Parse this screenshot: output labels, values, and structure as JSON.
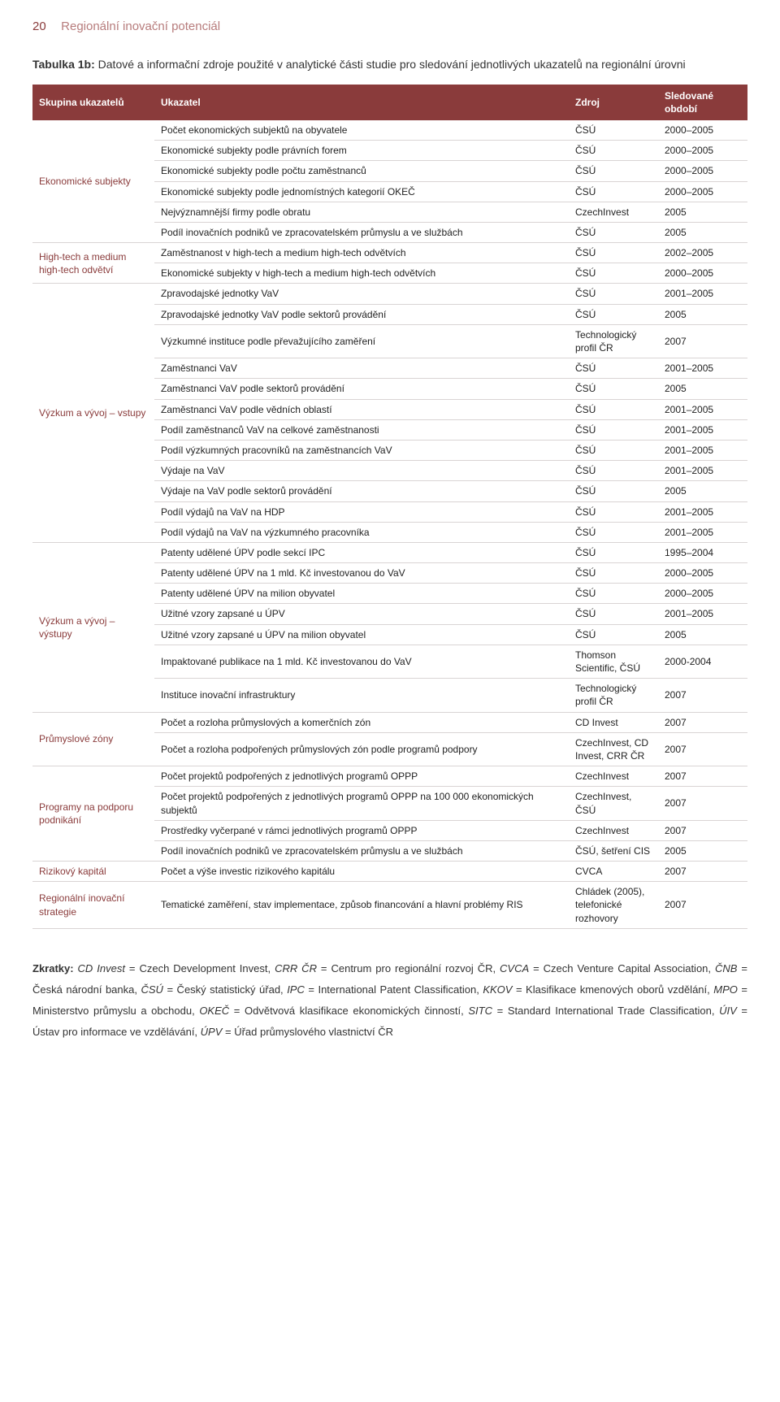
{
  "page_number": "20",
  "running_title": "Regionální inovační potenciál",
  "table_title_bold": "Tabulka 1b:",
  "table_title_rest": " Datové a informační zdroje použité v analytické části studie pro sledování jednotlivých ukazatelů na regionální úrovni",
  "headers": {
    "group": "Skupina ukazatelů",
    "indicator": "Ukazatel",
    "source": "Zdroj",
    "period": "Sledované období"
  },
  "groups": [
    {
      "name": "Ekonomické subjekty",
      "rows": [
        {
          "indicator": "Počet ekonomických subjektů na obyvatele",
          "source": "ČSÚ",
          "period": "2000–2005"
        },
        {
          "indicator": "Ekonomické subjekty podle právních forem",
          "source": "ČSÚ",
          "period": "2000–2005"
        },
        {
          "indicator": "Ekonomické subjekty podle počtu zaměstnanců",
          "source": "ČSÚ",
          "period": "2000–2005"
        },
        {
          "indicator": "Ekonomické subjekty podle jednomístných kategorií OKEČ",
          "source": "ČSÚ",
          "period": "2000–2005"
        },
        {
          "indicator": "Nejvýznamnější firmy podle obratu",
          "source": "CzechInvest",
          "period": "2005"
        },
        {
          "indicator": "Podíl inovačních podniků ve zpracovatelském průmyslu a ve službách",
          "source": "ČSÚ",
          "period": "2005"
        }
      ]
    },
    {
      "name": "High-tech a medium high-tech odvětví",
      "rows": [
        {
          "indicator": "Zaměstnanost v high-tech a medium high-tech odvětvích",
          "source": "ČSÚ",
          "period": "2002–2005"
        },
        {
          "indicator": "Ekonomické subjekty v high-tech a medium high-tech odvětvích",
          "source": "ČSÚ",
          "period": "2000–2005"
        }
      ]
    },
    {
      "name": "Výzkum a vývoj – vstupy",
      "rows": [
        {
          "indicator": "Zpravodajské jednotky VaV",
          "source": "ČSÚ",
          "period": "2001–2005"
        },
        {
          "indicator": "Zpravodajské jednotky VaV podle sektorů provádění",
          "source": "ČSÚ",
          "period": "2005"
        },
        {
          "indicator": "Výzkumné instituce podle převažujícího zaměření",
          "source": "Technologický profil ČR",
          "period": "2007"
        },
        {
          "indicator": "Zaměstnanci VaV",
          "source": "ČSÚ",
          "period": "2001–2005"
        },
        {
          "indicator": "Zaměstnanci VaV podle sektorů provádění",
          "source": "ČSÚ",
          "period": "2005"
        },
        {
          "indicator": "Zaměstnanci VaV podle vědních oblastí",
          "source": "ČSÚ",
          "period": "2001–2005"
        },
        {
          "indicator": "Podíl zaměstnanců VaV na celkové zaměstnanosti",
          "source": "ČSÚ",
          "period": "2001–2005"
        },
        {
          "indicator": "Podíl výzkumných pracovníků na zaměstnancích VaV",
          "source": "ČSÚ",
          "period": "2001–2005"
        },
        {
          "indicator": "Výdaje na VaV",
          "source": "ČSÚ",
          "period": "2001–2005"
        },
        {
          "indicator": "Výdaje na VaV podle sektorů provádění",
          "source": "ČSÚ",
          "period": "2005"
        },
        {
          "indicator": "Podíl výdajů na VaV na HDP",
          "source": "ČSÚ",
          "period": "2001–2005"
        },
        {
          "indicator": "Podíl výdajů na VaV na výzkumného pracovníka",
          "source": "ČSÚ",
          "period": "2001–2005"
        }
      ]
    },
    {
      "name": "Výzkum a vývoj – výstupy",
      "rows": [
        {
          "indicator": "Patenty udělené ÚPV podle sekcí IPC",
          "source": "ČSÚ",
          "period": "1995–2004"
        },
        {
          "indicator": "Patenty udělené ÚPV na 1 mld. Kč investovanou do VaV",
          "source": "ČSÚ",
          "period": "2000–2005"
        },
        {
          "indicator": "Patenty udělené ÚPV na milion obyvatel",
          "source": "ČSÚ",
          "period": "2000–2005"
        },
        {
          "indicator": "Užitné vzory zapsané u ÚPV",
          "source": "ČSÚ",
          "period": "2001–2005"
        },
        {
          "indicator": "Užitné vzory zapsané u ÚPV na milion obyvatel",
          "source": "ČSÚ",
          "period": "2005"
        },
        {
          "indicator": "Impaktované publikace na 1 mld. Kč investovanou do VaV",
          "source": "Thomson Scientific, ČSÚ",
          "period": "2000-2004"
        },
        {
          "indicator": "Instituce inovační infrastruktury",
          "source": "Technologický profil ČR",
          "period": "2007"
        }
      ]
    },
    {
      "name": "Průmyslové zóny",
      "rows": [
        {
          "indicator": "Počet a rozloha průmyslových a komerčních zón",
          "source": "CD Invest",
          "period": "2007"
        },
        {
          "indicator": "Počet a rozloha podpořených průmyslových zón podle programů podpory",
          "source": "CzechInvest, CD Invest, CRR ČR",
          "period": "2007"
        }
      ]
    },
    {
      "name": "Programy na podporu podnikání",
      "rows": [
        {
          "indicator": "Počet projektů podpořených z jednotlivých programů OPPP",
          "source": "CzechInvest",
          "period": "2007"
        },
        {
          "indicator": "Počet projektů podpořených z jednotlivých programů OPPP na 100 000 ekonomických subjektů",
          "source": "CzechInvest, ČSÚ",
          "period": "2007"
        },
        {
          "indicator": "Prostředky vyčerpané v rámci jednotlivých programů OPPP",
          "source": "CzechInvest",
          "period": "2007"
        },
        {
          "indicator": "Podíl inovačních podniků ve zpracovatelském průmyslu a ve službách",
          "source": "ČSÚ, šetření CIS",
          "period": "2005"
        }
      ]
    },
    {
      "name": "Rizikový kapitál",
      "rows": [
        {
          "indicator": "Počet a výše investic rizikového kapitálu",
          "source": "CVCA",
          "period": "2007"
        }
      ]
    },
    {
      "name": "Regionální inovační strategie",
      "rows": [
        {
          "indicator": "Tematické zaměření, stav implementace, způsob financování a hlavní problémy RIS",
          "source": "Chládek (2005), telefonické rozhovory",
          "period": "2007"
        }
      ]
    }
  ],
  "footnote_parts": [
    {
      "b": "Zkratky: ",
      "i": "CD Invest",
      "t": " = Czech Development Invest, "
    },
    {
      "i": "CRR ČR",
      "t": " = Centrum pro regionální rozvoj ČR, "
    },
    {
      "i": "CVCA",
      "t": " = Czech Venture Capital Association, "
    },
    {
      "i": "ČNB",
      "t": " = Česká národní banka, "
    },
    {
      "i": "ČSÚ",
      "t": " = Český statistický úřad, "
    },
    {
      "i": "IPC",
      "t": " = International Patent Classification, "
    },
    {
      "i": "KKOV",
      "t": " = Klasifikace kmenových oborů vzdělání, "
    },
    {
      "i": "MPO",
      "t": " = Ministerstvo průmyslu a obchodu, "
    },
    {
      "i": "OKEČ",
      "t": " = Odvětvová klasifikace ekonomických činností, "
    },
    {
      "i": "SITC",
      "t": " = Standard International Trade Classification, "
    },
    {
      "i": "ÚIV",
      "t": " = Ústav pro informace ve vzdělávání, "
    },
    {
      "i": "ÚPV",
      "t": " = Úřad průmyslového vlastnictví ČR"
    }
  ],
  "colors": {
    "header_bg": "#8a3b3b",
    "header_fg": "#ffffff",
    "group_fg": "#8a3b3b",
    "row_border": "#d9d4d4",
    "running_fg": "#b77c7c"
  }
}
